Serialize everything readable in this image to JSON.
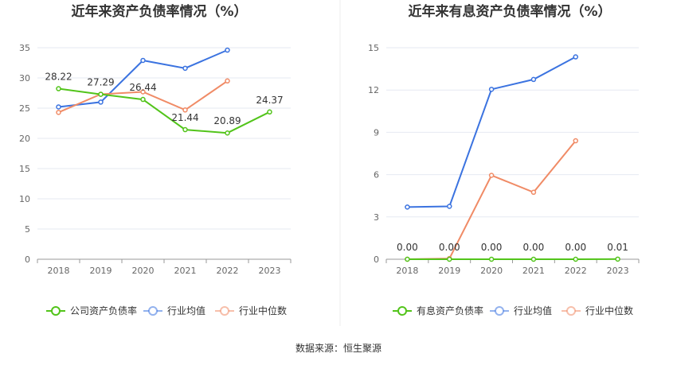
{
  "chart_data": [
    {
      "type": "line",
      "title": "近年来资产负债率情况（%）",
      "categories": [
        "2018",
        "2019",
        "2020",
        "2021",
        "2022",
        "2023"
      ],
      "ylim": [
        0,
        35
      ],
      "yticks": [
        "0",
        "5",
        "10",
        "15",
        "20",
        "25",
        "30",
        "35"
      ],
      "grid": true,
      "legend_position": "bottom",
      "series": [
        {
          "name": "公司资产负债率",
          "color": "#52c41a",
          "values": [
            28.22,
            27.29,
            26.44,
            21.44,
            20.89,
            24.37
          ],
          "labels": [
            "28.22",
            "27.29",
            "26.44",
            "21.44",
            "20.89",
            "24.37"
          ]
        },
        {
          "name": "行业均值",
          "color": "#3b73e0",
          "values": [
            25.2,
            26.0,
            32.9,
            31.6,
            34.6,
            null
          ]
        },
        {
          "name": "行业中位数",
          "color": "#f08b66",
          "values": [
            24.3,
            27.3,
            27.7,
            24.7,
            29.5,
            null
          ]
        }
      ]
    },
    {
      "type": "line",
      "title": "近年来有息资产负债率情况（%）",
      "categories": [
        "2018",
        "2019",
        "2020",
        "2021",
        "2022",
        "2023"
      ],
      "ylim": [
        0,
        15
      ],
      "yticks": [
        "0",
        "3",
        "6",
        "9",
        "12",
        "15"
      ],
      "grid": true,
      "legend_position": "bottom",
      "series": [
        {
          "name": "有息资产负债率",
          "color": "#52c41a",
          "values": [
            0.0,
            0.0,
            0.0,
            0.0,
            0.0,
            0.01
          ],
          "labels": [
            "0.00",
            "0.00",
            "0.00",
            "0.00",
            "0.00",
            "0.01"
          ]
        },
        {
          "name": "行业均值",
          "color": "#3b73e0",
          "values": [
            3.7,
            3.75,
            12.05,
            12.75,
            14.35,
            null
          ]
        },
        {
          "name": "行业中位数",
          "color": "#f08b66",
          "values": [
            0.0,
            0.05,
            5.95,
            4.75,
            8.4,
            null
          ]
        }
      ]
    }
  ],
  "footer": {
    "source": "数据来源：恒生聚源"
  }
}
